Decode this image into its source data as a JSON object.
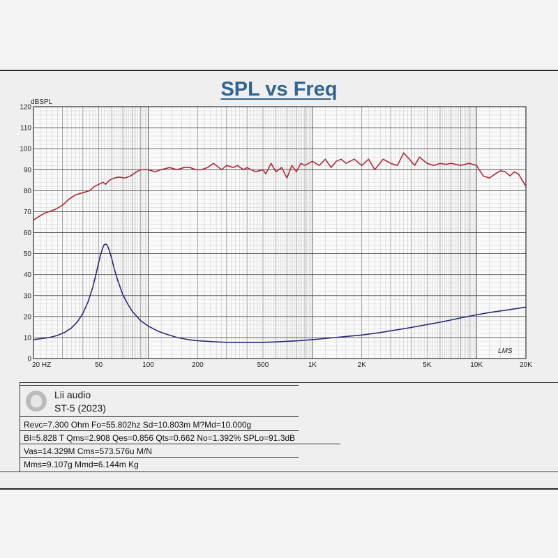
{
  "chart_data": {
    "type": "line",
    "title": "SPL vs Freq",
    "ylabel": "dBSPL",
    "xscale": "log",
    "xlim": [
      20,
      20000
    ],
    "ylim": [
      0,
      120
    ],
    "yticks": [
      0,
      10,
      20,
      30,
      40,
      50,
      60,
      70,
      80,
      90,
      100,
      110,
      120
    ],
    "xticks": [
      {
        "value": 20,
        "label": "20  HZ"
      },
      {
        "value": 50,
        "label": "50"
      },
      {
        "value": 100,
        "label": "100"
      },
      {
        "value": 200,
        "label": "200"
      },
      {
        "value": 500,
        "label": "500"
      },
      {
        "value": 1000,
        "label": "1K"
      },
      {
        "value": 2000,
        "label": "2K"
      },
      {
        "value": 5000,
        "label": "5K"
      },
      {
        "value": 10000,
        "label": "10K"
      },
      {
        "value": 20000,
        "label": "20K"
      }
    ],
    "grid": true,
    "watermark": "LMS",
    "series": [
      {
        "color": "#b02a3a",
        "x": [
          20,
          23,
          27,
          30,
          33,
          36,
          40,
          44,
          47,
          50,
          53,
          55,
          58,
          62,
          66,
          72,
          78,
          85,
          90,
          95,
          100,
          110,
          120,
          135,
          150,
          165,
          180,
          195,
          210,
          230,
          250,
          280,
          300,
          330,
          350,
          380,
          400,
          450,
          500,
          520,
          560,
          600,
          650,
          700,
          750,
          800,
          850,
          900,
          1000,
          1100,
          1200,
          1300,
          1400,
          1500,
          1600,
          1800,
          2000,
          2200,
          2400,
          2700,
          3000,
          3300,
          3600,
          3900,
          4200,
          4500,
          5000,
          5500,
          6000,
          6500,
          7000,
          8000,
          9000,
          10000,
          11000,
          12000,
          13000,
          14000,
          15000,
          16000,
          17000,
          18000,
          19000,
          20000
        ],
        "y": [
          66,
          69,
          71,
          73,
          76,
          78,
          79,
          80,
          82,
          83,
          84,
          83,
          85,
          86,
          86.5,
          86,
          87,
          89,
          90,
          90,
          90,
          89,
          90,
          91,
          90,
          91,
          91,
          90,
          90,
          91,
          93,
          90,
          92,
          91,
          92,
          90,
          91,
          89,
          90,
          88,
          93,
          89,
          91,
          86,
          92,
          89,
          93,
          92,
          94,
          92,
          95,
          91,
          94,
          95,
          93,
          95,
          92,
          95,
          90,
          95,
          93,
          92,
          98,
          95,
          92,
          96,
          93,
          92,
          93,
          92.5,
          93,
          92,
          93,
          92,
          87,
          86,
          88,
          89.5,
          89,
          87,
          89,
          88,
          85,
          82
        ]
      },
      {
        "color": "#2a2a7a",
        "x": [
          20,
          22,
          25,
          28,
          31,
          34,
          37,
          40,
          43,
          46,
          49,
          51,
          53,
          54,
          55,
          56,
          57,
          58,
          60,
          62,
          65,
          70,
          75,
          80,
          90,
          100,
          115,
          130,
          150,
          175,
          200,
          250,
          300,
          350,
          400,
          500,
          600,
          800,
          1000,
          1300,
          1600,
          2000,
          2500,
          3000,
          4000,
          5000,
          6000,
          8000,
          10000,
          12000,
          15000,
          20000
        ],
        "y": [
          9,
          9.4,
          10,
          11,
          12.5,
          14.5,
          17.5,
          21.5,
          27,
          34,
          43,
          49,
          53,
          54.3,
          54.5,
          54.2,
          53,
          51.5,
          47.5,
          43,
          37.5,
          30.5,
          26,
          22.5,
          18,
          15.5,
          13,
          11.5,
          10,
          9,
          8.5,
          8,
          7.7,
          7.6,
          7.6,
          7.7,
          7.9,
          8.4,
          9,
          9.8,
          10.5,
          11.2,
          12.2,
          13.2,
          14.8,
          16.2,
          17.3,
          19.3,
          20.8,
          21.9,
          23,
          24.5
        ]
      }
    ]
  },
  "brand": {
    "name": "Lii audio",
    "model": "ST-5 (2023)"
  },
  "params": [
    "Revc=7.300 Ohm Fo=55.802hz Sd=10.803m M?Md=10.000g",
    "Bl=5.828 T Qms=2.908 Qes=0.856  Qts=0.662 No=1.392% SPLo=91.3dB",
    "Vas=14.329M Cms=573.576u M/N",
    "Mms=9.107g Mmd=6.144m Kg"
  ]
}
